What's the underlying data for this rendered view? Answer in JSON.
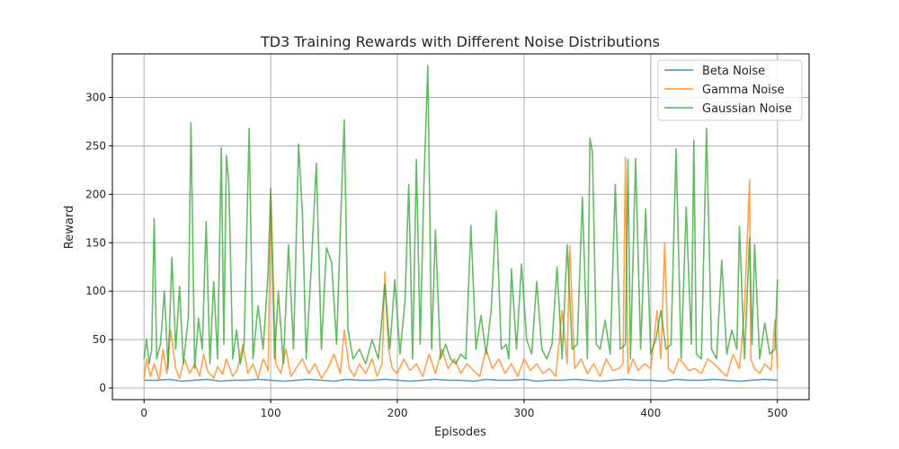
{
  "chart_data": {
    "type": "line",
    "title": "TD3 Training Rewards with Different Noise Distributions",
    "xlabel": "Episodes",
    "ylabel": "Reward",
    "xlim": [
      -25,
      525
    ],
    "ylim": [
      -12,
      345
    ],
    "xticks": [
      0,
      100,
      200,
      300,
      400,
      500
    ],
    "yticks": [
      0,
      50,
      100,
      150,
      200,
      250,
      300
    ],
    "grid": true,
    "legend_position": "top-right",
    "series": [
      {
        "name": "Beta Noise",
        "color": "#1f77b4",
        "x": [
          0,
          10,
          20,
          30,
          40,
          50,
          60,
          70,
          80,
          90,
          100,
          110,
          120,
          130,
          140,
          150,
          160,
          170,
          180,
          190,
          200,
          210,
          220,
          230,
          240,
          250,
          260,
          270,
          280,
          290,
          300,
          310,
          320,
          330,
          340,
          350,
          360,
          370,
          380,
          390,
          400,
          410,
          420,
          430,
          440,
          450,
          460,
          470,
          480,
          490,
          500
        ],
        "values": [
          8,
          8,
          9,
          7,
          8,
          9,
          7,
          8,
          8,
          9,
          8,
          7,
          8,
          9,
          8,
          7,
          9,
          8,
          8,
          9,
          8,
          7,
          8,
          9,
          8,
          8,
          7,
          9,
          8,
          8,
          9,
          7,
          8,
          8,
          9,
          8,
          7,
          8,
          9,
          8,
          8,
          7,
          9,
          8,
          8,
          9,
          8,
          7,
          8,
          9,
          8
        ]
      },
      {
        "name": "Gamma Noise",
        "color": "#ff7f0e",
        "x": [
          0,
          2,
          5,
          8,
          12,
          15,
          18,
          21,
          25,
          28,
          32,
          36,
          40,
          44,
          47,
          50,
          55,
          58,
          62,
          65,
          70,
          74,
          78,
          82,
          86,
          90,
          94,
          98,
          100,
          104,
          108,
          112,
          116,
          120,
          125,
          130,
          135,
          140,
          145,
          150,
          155,
          158,
          162,
          166,
          170,
          175,
          180,
          184,
          188,
          190,
          193,
          196,
          200,
          205,
          210,
          215,
          220,
          225,
          230,
          235,
          240,
          245,
          250,
          255,
          260,
          265,
          270,
          275,
          280,
          285,
          290,
          295,
          300,
          305,
          310,
          315,
          320,
          325,
          330,
          334,
          336,
          340,
          345,
          350,
          355,
          360,
          365,
          370,
          375,
          378,
          380,
          382,
          386,
          390,
          395,
          400,
          405,
          408,
          411,
          414,
          418,
          422,
          426,
          430,
          435,
          440,
          445,
          450,
          455,
          460,
          465,
          470,
          474,
          478,
          479,
          482,
          486,
          490,
          495,
          498,
          500
        ],
        "values": [
          10,
          30,
          12,
          25,
          8,
          40,
          15,
          60,
          20,
          10,
          30,
          15,
          25,
          12,
          35,
          18,
          10,
          22,
          14,
          30,
          12,
          20,
          45,
          15,
          25,
          10,
          30,
          18,
          200,
          25,
          15,
          40,
          12,
          20,
          30,
          15,
          25,
          10,
          20,
          35,
          15,
          60,
          20,
          12,
          25,
          15,
          30,
          12,
          25,
          120,
          40,
          20,
          15,
          30,
          18,
          25,
          12,
          35,
          15,
          40,
          20,
          30,
          15,
          25,
          18,
          12,
          40,
          20,
          30,
          15,
          25,
          12,
          30,
          18,
          25,
          15,
          20,
          12,
          80,
          25,
          147,
          20,
          30,
          15,
          25,
          12,
          30,
          18,
          20,
          25,
          238,
          15,
          30,
          18,
          25,
          20,
          80,
          30,
          150,
          20,
          15,
          30,
          25,
          18,
          20,
          15,
          30,
          25,
          18,
          12,
          35,
          20,
          80,
          215,
          30,
          20,
          15,
          25,
          18,
          70,
          20
        ]
      },
      {
        "name": "Gaussian Noise",
        "color": "#2ca02c",
        "x": [
          0,
          2,
          4,
          6,
          8,
          10,
          13,
          16,
          19,
          22,
          25,
          28,
          31,
          35,
          37,
          40,
          43,
          46,
          49,
          52,
          55,
          58,
          61,
          63,
          65,
          67,
          70,
          73,
          76,
          79,
          83,
          86,
          90,
          94,
          98,
          100,
          103,
          106,
          110,
          114,
          118,
          122,
          125,
          128,
          132,
          136,
          140,
          144,
          148,
          152,
          156,
          158,
          161,
          165,
          170,
          175,
          180,
          185,
          190,
          194,
          198,
          202,
          206,
          209,
          212,
          215,
          218,
          221,
          224,
          227,
          230,
          234,
          238,
          242,
          246,
          250,
          254,
          258,
          262,
          266,
          270,
          274,
          278,
          282,
          286,
          288,
          290,
          294,
          298,
          302,
          306,
          310,
          314,
          318,
          322,
          326,
          330,
          334,
          338,
          342,
          346,
          350,
          352,
          354,
          357,
          360,
          364,
          368,
          372,
          376,
          380,
          382,
          384,
          388,
          392,
          396,
          400,
          404,
          408,
          412,
          416,
          420,
          424,
          428,
          432,
          434,
          436,
          440,
          444,
          448,
          452,
          456,
          460,
          464,
          468,
          470,
          474,
          478,
          480,
          482,
          486,
          490,
          494,
          498,
          500
        ],
        "values": [
          30,
          50,
          25,
          40,
          175,
          30,
          45,
          100,
          20,
          135,
          40,
          105,
          25,
          73,
          274,
          20,
          72,
          40,
          172,
          25,
          110,
          30,
          248,
          45,
          240,
          210,
          30,
          60,
          25,
          45,
          268,
          30,
          85,
          40,
          120,
          206,
          30,
          100,
          25,
          148,
          40,
          252,
          180,
          30,
          125,
          232,
          40,
          145,
          130,
          45,
          202,
          277,
          60,
          30,
          40,
          25,
          50,
          30,
          107,
          40,
          112,
          35,
          90,
          210,
          30,
          236,
          45,
          212,
          333,
          40,
          163,
          30,
          45,
          30,
          25,
          35,
          30,
          168,
          40,
          75,
          35,
          80,
          183,
          40,
          45,
          30,
          123,
          40,
          128,
          50,
          35,
          110,
          40,
          30,
          45,
          125,
          30,
          148,
          40,
          45,
          197,
          30,
          258,
          243,
          45,
          40,
          70,
          35,
          210,
          40,
          45,
          236,
          30,
          237,
          40,
          185,
          35,
          50,
          80,
          40,
          45,
          247,
          30,
          187,
          45,
          256,
          35,
          30,
          268,
          40,
          30,
          132,
          35,
          60,
          40,
          167,
          30,
          155,
          45,
          148,
          30,
          67,
          35,
          40,
          112
        ]
      }
    ]
  }
}
